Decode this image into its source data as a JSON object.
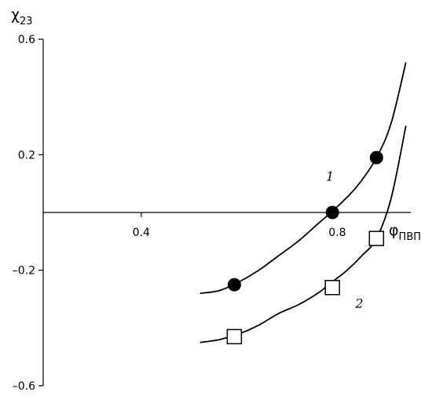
{
  "chart_data": {
    "type": "scatter",
    "xlabel": "φ",
    "xlabel_sub": "ПВП",
    "ylabel": "χ",
    "ylabel_sub": "23",
    "xlim": [
      0.2,
      0.95
    ],
    "ylim": [
      -0.6,
      0.6
    ],
    "x_ticks": [
      0.4,
      0.8
    ],
    "x_tick_labels": [
      "0.4",
      "0.8"
    ],
    "y_ticks": [
      0.6,
      0.2,
      -0.2,
      -0.6
    ],
    "y_tick_labels": [
      "0.6",
      "0.2",
      "–0.2",
      "–0.6"
    ],
    "grid": false,
    "series": [
      {
        "name": "1",
        "marker": "filled-circle",
        "color": "#000000",
        "points": [
          {
            "x": 0.59,
            "y": -0.25
          },
          {
            "x": 0.79,
            "y": 0.0
          },
          {
            "x": 0.88,
            "y": 0.19
          }
        ],
        "curve": [
          {
            "x": 0.52,
            "y": -0.28
          },
          {
            "x": 0.56,
            "y": -0.27
          },
          {
            "x": 0.6,
            "y": -0.24
          },
          {
            "x": 0.64,
            "y": -0.2
          },
          {
            "x": 0.68,
            "y": -0.15
          },
          {
            "x": 0.72,
            "y": -0.1
          },
          {
            "x": 0.76,
            "y": -0.04
          },
          {
            "x": 0.8,
            "y": 0.02
          },
          {
            "x": 0.84,
            "y": 0.09
          },
          {
            "x": 0.88,
            "y": 0.19
          },
          {
            "x": 0.91,
            "y": 0.31
          },
          {
            "x": 0.94,
            "y": 0.52
          }
        ]
      },
      {
        "name": "2",
        "marker": "open-square",
        "color": "#000000",
        "points": [
          {
            "x": 0.59,
            "y": -0.43
          },
          {
            "x": 0.79,
            "y": -0.26
          },
          {
            "x": 0.88,
            "y": -0.09
          }
        ],
        "curve": [
          {
            "x": 0.52,
            "y": -0.45
          },
          {
            "x": 0.56,
            "y": -0.44
          },
          {
            "x": 0.6,
            "y": -0.42
          },
          {
            "x": 0.64,
            "y": -0.39
          },
          {
            "x": 0.68,
            "y": -0.35
          },
          {
            "x": 0.72,
            "y": -0.32
          },
          {
            "x": 0.76,
            "y": -0.28
          },
          {
            "x": 0.79,
            "y": -0.24
          },
          {
            "x": 0.82,
            "y": -0.2
          },
          {
            "x": 0.85,
            "y": -0.15
          },
          {
            "x": 0.88,
            "y": -0.09
          },
          {
            "x": 0.91,
            "y": 0.05
          },
          {
            "x": 0.94,
            "y": 0.3
          }
        ]
      }
    ],
    "annotations": [
      {
        "text": "1",
        "x": 0.785,
        "y": 0.11
      },
      {
        "text": "2",
        "x": 0.845,
        "y": -0.33
      }
    ]
  }
}
